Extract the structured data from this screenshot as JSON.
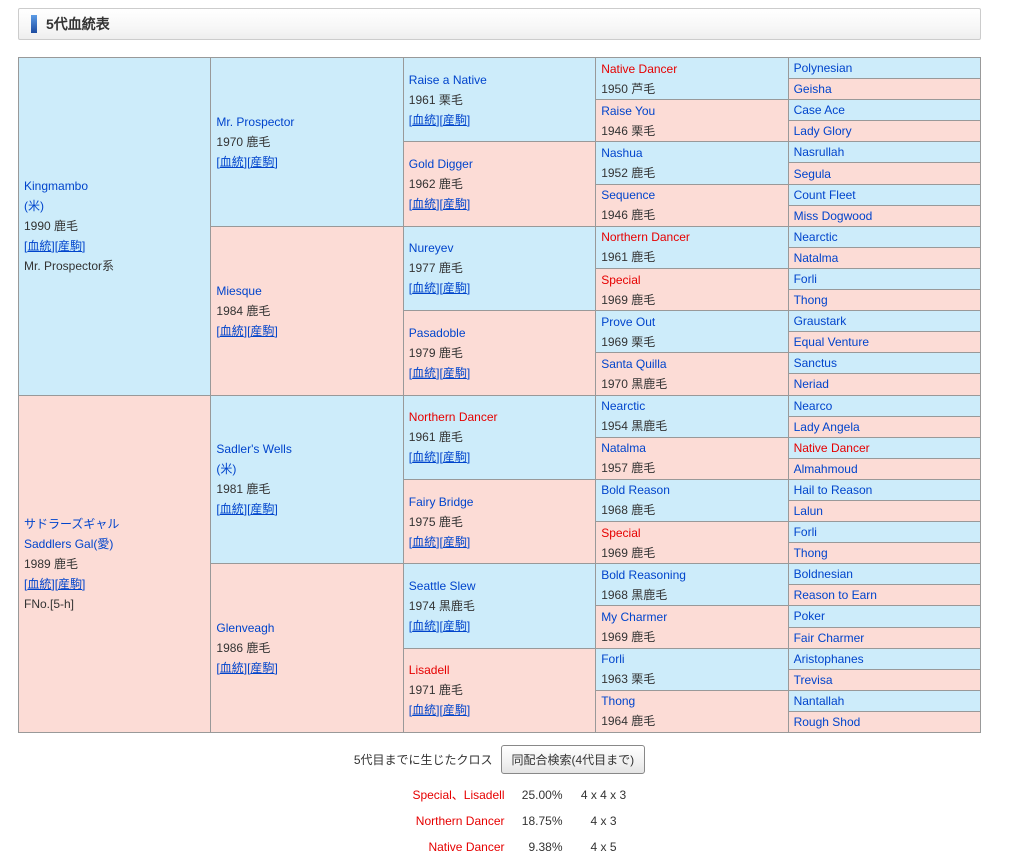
{
  "title": "5代血統表",
  "links_label": {
    "blood": "血統",
    "offspring": "産駒"
  },
  "colors": {
    "male_bg": "#cdecfa",
    "female_bg": "#fcdcd6",
    "link_blue": "#0044cc",
    "cross_red": "#e60000",
    "border_gray": "#999999",
    "text_dark": "#333333"
  },
  "pedigree": {
    "generations": [
      {
        "gen": 1,
        "cells": [
          {
            "name": "Kingmambo",
            "sex": "m",
            "name2": "(米)",
            "year": "1990 鹿毛",
            "links": true,
            "note": "Mr. Prospector系"
          },
          {
            "name": "サドラーズギャル",
            "sex": "f",
            "name2": "Saddlers Gal(愛)",
            "year": "1989 鹿毛",
            "links": true,
            "note": "FNo.[5-h]"
          }
        ]
      },
      {
        "gen": 2,
        "cells": [
          {
            "name": "Mr. Prospector",
            "sex": "m",
            "year": "1970 鹿毛",
            "links": true
          },
          {
            "name": "Miesque",
            "sex": "f",
            "year": "1984 鹿毛",
            "links": true
          },
          {
            "name": "Sadler's Wells",
            "sex": "m",
            "name2": "(米)",
            "year": "1981 鹿毛",
            "links": true
          },
          {
            "name": "Glenveagh",
            "sex": "f",
            "year": "1986 鹿毛",
            "links": true
          }
        ]
      },
      {
        "gen": 3,
        "cells": [
          {
            "name": "Raise a Native",
            "sex": "m",
            "year": "1961 栗毛",
            "links": true
          },
          {
            "name": "Gold Digger",
            "sex": "f",
            "year": "1962 鹿毛",
            "links": true
          },
          {
            "name": "Nureyev",
            "sex": "m",
            "year": "1977 鹿毛",
            "links": true
          },
          {
            "name": "Pasadoble",
            "sex": "f",
            "year": "1979 鹿毛",
            "links": true
          },
          {
            "name": "Northern Dancer",
            "sex": "m",
            "year": "1961 鹿毛",
            "links": true,
            "red": true
          },
          {
            "name": "Fairy Bridge",
            "sex": "f",
            "year": "1975 鹿毛",
            "links": true
          },
          {
            "name": "Seattle Slew",
            "sex": "m",
            "year": "1974 黒鹿毛",
            "links": true
          },
          {
            "name": "Lisadell",
            "sex": "f",
            "year": "1971 鹿毛",
            "links": true,
            "red": true
          }
        ]
      },
      {
        "gen": 4,
        "cells": [
          {
            "name": "Native Dancer",
            "sex": "m",
            "year": "1950 芦毛",
            "red": true
          },
          {
            "name": "Raise You",
            "sex": "f",
            "year": "1946 栗毛"
          },
          {
            "name": "Nashua",
            "sex": "m",
            "year": "1952 鹿毛"
          },
          {
            "name": "Sequence",
            "sex": "f",
            "year": "1946 鹿毛"
          },
          {
            "name": "Northern Dancer",
            "sex": "m",
            "year": "1961 鹿毛",
            "red": true
          },
          {
            "name": "Special",
            "sex": "f",
            "year": "1969 鹿毛",
            "red": true
          },
          {
            "name": "Prove Out",
            "sex": "m",
            "year": "1969 栗毛"
          },
          {
            "name": "Santa Quilla",
            "sex": "f",
            "year": "1970 黒鹿毛"
          },
          {
            "name": "Nearctic",
            "sex": "m",
            "year": "1954 黒鹿毛"
          },
          {
            "name": "Natalma",
            "sex": "f",
            "year": "1957 鹿毛"
          },
          {
            "name": "Bold Reason",
            "sex": "m",
            "year": "1968 鹿毛"
          },
          {
            "name": "Special",
            "sex": "f",
            "year": "1969 鹿毛",
            "red": true
          },
          {
            "name": "Bold Reasoning",
            "sex": "m",
            "year": "1968 黒鹿毛"
          },
          {
            "name": "My Charmer",
            "sex": "f",
            "year": "1969 鹿毛"
          },
          {
            "name": "Forli",
            "sex": "m",
            "year": "1963 栗毛"
          },
          {
            "name": "Thong",
            "sex": "f",
            "year": "1964 鹿毛"
          }
        ]
      },
      {
        "gen": 5,
        "cells": [
          {
            "name": "Polynesian",
            "sex": "m"
          },
          {
            "name": "Geisha",
            "sex": "f"
          },
          {
            "name": "Case Ace",
            "sex": "m"
          },
          {
            "name": "Lady Glory",
            "sex": "f"
          },
          {
            "name": "Nasrullah",
            "sex": "m"
          },
          {
            "name": "Segula",
            "sex": "f"
          },
          {
            "name": "Count Fleet",
            "sex": "m"
          },
          {
            "name": "Miss Dogwood",
            "sex": "f"
          },
          {
            "name": "Nearctic",
            "sex": "m"
          },
          {
            "name": "Natalma",
            "sex": "f"
          },
          {
            "name": "Forli",
            "sex": "m"
          },
          {
            "name": "Thong",
            "sex": "f"
          },
          {
            "name": "Graustark",
            "sex": "m"
          },
          {
            "name": "Equal Venture",
            "sex": "f"
          },
          {
            "name": "Sanctus",
            "sex": "m"
          },
          {
            "name": "Neriad",
            "sex": "f"
          },
          {
            "name": "Nearco",
            "sex": "m"
          },
          {
            "name": "Lady Angela",
            "sex": "f"
          },
          {
            "name": "Native Dancer",
            "sex": "m",
            "red": true
          },
          {
            "name": "Almahmoud",
            "sex": "f"
          },
          {
            "name": "Hail to Reason",
            "sex": "m"
          },
          {
            "name": "Lalun",
            "sex": "f"
          },
          {
            "name": "Forli",
            "sex": "m"
          },
          {
            "name": "Thong",
            "sex": "f"
          },
          {
            "name": "Boldnesian",
            "sex": "m"
          },
          {
            "name": "Reason to Earn",
            "sex": "f"
          },
          {
            "name": "Poker",
            "sex": "m"
          },
          {
            "name": "Fair Charmer",
            "sex": "f"
          },
          {
            "name": "Aristophanes",
            "sex": "m"
          },
          {
            "name": "Trevisa",
            "sex": "f"
          },
          {
            "name": "Nantallah",
            "sex": "m"
          },
          {
            "name": "Rough Shod",
            "sex": "f"
          }
        ]
      }
    ]
  },
  "cross_section": {
    "label": "5代目までに生じたクロス",
    "button": "同配合検索(4代目まで)",
    "crosses": [
      {
        "name": "Special、Lisadell",
        "pct": "25.00%",
        "pattern": "4 x 4 x 3"
      },
      {
        "name": "Northern Dancer",
        "pct": "18.75%",
        "pattern": "4 x 3"
      },
      {
        "name": "Native Dancer",
        "pct": "9.38%",
        "pattern": "4 x 5"
      }
    ]
  }
}
